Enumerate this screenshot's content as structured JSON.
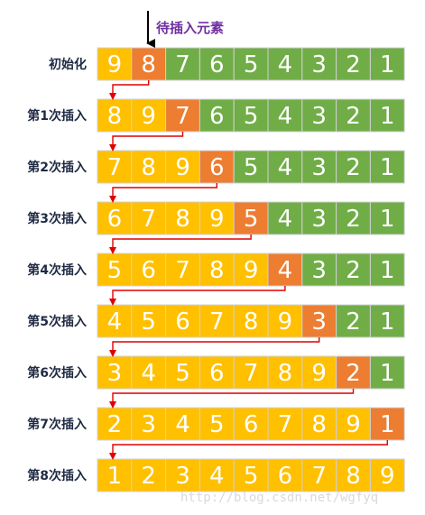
{
  "pointer_label": "待插入元素",
  "watermark": "http://blog.csdn.net/wgfyq",
  "colors": {
    "sorted": "#ffc000",
    "unsorted": "#70ad47",
    "current": "#ed7d31",
    "arrow": "#e00000",
    "cell_border": "#d0d0d0",
    "pointer_text": "#7030a0"
  },
  "rows": [
    {
      "label": "初始化",
      "values": [
        9,
        8,
        7,
        6,
        5,
        4,
        3,
        2,
        1
      ],
      "current": 1,
      "sorted_until": 1
    },
    {
      "label": "第1次插入",
      "values": [
        8,
        9,
        7,
        6,
        5,
        4,
        3,
        2,
        1
      ],
      "current": 2,
      "sorted_until": 2
    },
    {
      "label": "第2次插入",
      "values": [
        7,
        8,
        9,
        6,
        5,
        4,
        3,
        2,
        1
      ],
      "current": 3,
      "sorted_until": 3
    },
    {
      "label": "第3次插入",
      "values": [
        6,
        7,
        8,
        9,
        5,
        4,
        3,
        2,
        1
      ],
      "current": 4,
      "sorted_until": 4
    },
    {
      "label": "第4次插入",
      "values": [
        5,
        6,
        7,
        8,
        9,
        4,
        3,
        2,
        1
      ],
      "current": 5,
      "sorted_until": 5
    },
    {
      "label": "第5次插入",
      "values": [
        4,
        5,
        6,
        7,
        8,
        9,
        3,
        2,
        1
      ],
      "current": 6,
      "sorted_until": 6
    },
    {
      "label": "第6次插入",
      "values": [
        3,
        4,
        5,
        6,
        7,
        8,
        9,
        2,
        1
      ],
      "current": 7,
      "sorted_until": 7
    },
    {
      "label": "第7次插入",
      "values": [
        2,
        3,
        4,
        5,
        6,
        7,
        8,
        9,
        1
      ],
      "current": 8,
      "sorted_until": 8
    },
    {
      "label": "第8次插入",
      "values": [
        1,
        2,
        3,
        4,
        5,
        6,
        7,
        8,
        9
      ],
      "current": -1,
      "sorted_until": 9
    }
  ]
}
